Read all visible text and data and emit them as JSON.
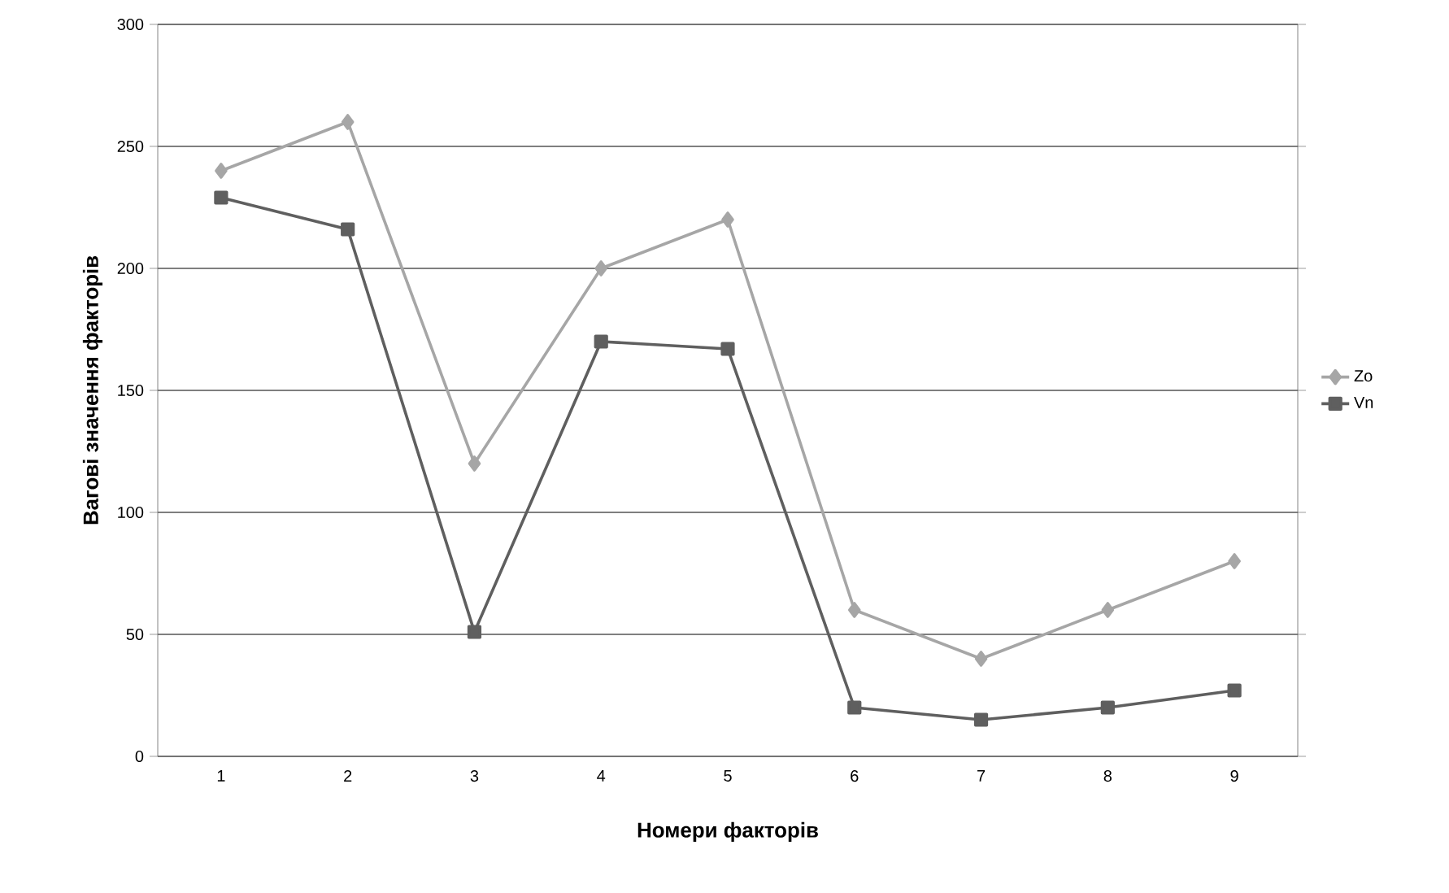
{
  "chart_data": {
    "type": "line",
    "xlabel": "Номери факторів",
    "ylabel": "Вагові значення факторів",
    "categories": [
      "1",
      "2",
      "3",
      "4",
      "5",
      "6",
      "7",
      "8",
      "9"
    ],
    "series": [
      {
        "name": "Zo",
        "color": "#a6a6a6",
        "marker": "diamond",
        "values": [
          240,
          260,
          120,
          200,
          220,
          60,
          40,
          60,
          80
        ]
      },
      {
        "name": "Vn",
        "color": "#5f5f5f",
        "marker": "square",
        "values": [
          229,
          216,
          51,
          170,
          167,
          20,
          15,
          20,
          27
        ]
      }
    ],
    "ylim": [
      0,
      300
    ],
    "yticks": [
      0,
      50,
      100,
      150,
      200,
      250,
      300
    ],
    "grid": "y",
    "legend": "right"
  }
}
